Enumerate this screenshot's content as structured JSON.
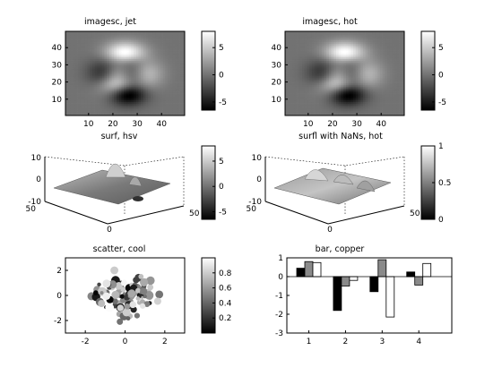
{
  "figure": {
    "background": "#ffffff",
    "colormap": "gray"
  },
  "chart_data": [
    {
      "type": "heatmap",
      "title": "imagesc, jet",
      "xlim": [
        0.5,
        49.5
      ],
      "ylim": [
        0.5,
        49.5
      ],
      "xticks": [
        10,
        20,
        30,
        40
      ],
      "yticks": [
        10,
        20,
        30,
        40
      ],
      "function": "peaks",
      "grid_size": [
        49,
        49
      ],
      "colorbar": {
        "range": [
          -6.5,
          8
        ],
        "ticks": [
          5,
          0,
          -5
        ],
        "tick_labels": [
          "5",
          "0",
          "-5"
        ]
      }
    },
    {
      "type": "heatmap",
      "title": "imagesc, hot",
      "xlim": [
        0.5,
        49.5
      ],
      "ylim": [
        0.5,
        49.5
      ],
      "xticks": [
        10,
        20,
        30,
        40
      ],
      "yticks": [
        10,
        20,
        30,
        40
      ],
      "function": "peaks",
      "grid_size": [
        49,
        49
      ],
      "colorbar": {
        "range": [
          -6.5,
          8
        ],
        "ticks": [
          5,
          0,
          -5
        ],
        "tick_labels": [
          "5",
          "0",
          "-5"
        ]
      }
    },
    {
      "type": "surface",
      "title": "surf, hsv",
      "function": "peaks",
      "zlim": [
        -10,
        10
      ],
      "zticks": [
        "10",
        "0",
        "-10"
      ],
      "xticks": [
        "0",
        "50"
      ],
      "yticks": [
        "0",
        "50"
      ],
      "colorbar": {
        "range": [
          -6.5,
          8
        ],
        "ticks": [
          5,
          0,
          -5
        ],
        "tick_labels": [
          "5",
          "0",
          "-5"
        ]
      }
    },
    {
      "type": "surface",
      "title": "surfl with NaNs, hot",
      "function": "peaks",
      "zlim": [
        -10,
        10
      ],
      "zticks": [
        "10",
        "0",
        "-10"
      ],
      "xticks": [
        "0",
        "50"
      ],
      "yticks": [
        "0",
        "50"
      ],
      "colorbar": {
        "range": [
          0,
          1
        ],
        "ticks": [
          1,
          0.5,
          0
        ],
        "tick_labels": [
          "1",
          "0.5",
          "0"
        ]
      }
    },
    {
      "type": "scatter",
      "title": "scatter, cool",
      "xlim": [
        -3,
        3
      ],
      "ylim": [
        -3,
        3
      ],
      "xticks": [
        -2,
        0,
        2
      ],
      "yticks": [
        2,
        0,
        -2
      ],
      "n_points": 100,
      "colorbar": {
        "range": [
          0,
          1
        ],
        "ticks": [
          0.8,
          0.6,
          0.4,
          0.2
        ],
        "tick_labels": [
          "0.8",
          "0.6",
          "0.4",
          "0.2"
        ]
      }
    },
    {
      "type": "bar",
      "title": "bar, copper",
      "categories": [
        "1",
        "2",
        "3",
        "4"
      ],
      "xlim": [
        0.4,
        4.9
      ],
      "ylim": [
        -3,
        1
      ],
      "yticks": [
        1,
        0,
        -1,
        -2,
        -3
      ],
      "series": [
        {
          "values": [
            0.45,
            -1.8,
            -0.8,
            0.25
          ],
          "color": "#000000"
        },
        {
          "values": [
            0.8,
            -0.5,
            0.9,
            -0.45
          ],
          "color": "#8a8a8a"
        },
        {
          "values": [
            0.75,
            -0.2,
            -2.15,
            0.7
          ],
          "color": "#ffffff"
        }
      ]
    }
  ]
}
